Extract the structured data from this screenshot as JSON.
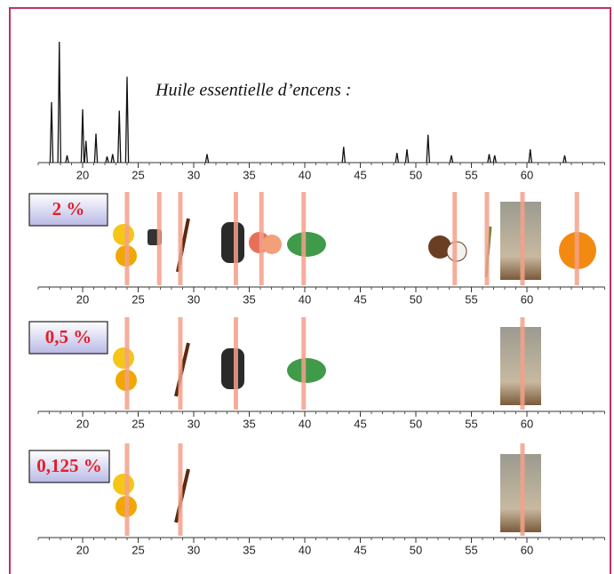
{
  "chart_data": [
    {
      "type": "spike",
      "title": "Huile essentielle d’encens :",
      "x": [
        17.2,
        17.9,
        18.6,
        20.0,
        20.3,
        21.2,
        22.2,
        22.7,
        23.3,
        24.0,
        31.2,
        43.5,
        48.3,
        49.2,
        51.1,
        53.2,
        56.6,
        57.1,
        60.3,
        63.4
      ],
      "values": [
        50,
        100,
        6,
        44,
        18,
        24,
        5,
        7,
        43,
        71,
        7,
        13,
        8,
        11,
        23,
        6,
        7,
        6,
        11,
        6
      ],
      "color": "#111111",
      "xlim": [
        16,
        67
      ],
      "ylim": [
        0,
        100
      ],
      "xticks": [
        20,
        25,
        30,
        35,
        40,
        45,
        50,
        55,
        60
      ]
    },
    {
      "type": "marker",
      "label": "2 %",
      "x": [
        24.0,
        26.9,
        28.8,
        33.8,
        36.1,
        39.9,
        53.5,
        56.4,
        59.6,
        64.5
      ],
      "color": "#f4a08a",
      "xlim": [
        16,
        67
      ],
      "xticks": [
        20,
        25,
        30,
        35,
        40,
        45,
        50,
        55,
        60
      ]
    },
    {
      "type": "marker",
      "label": "0,5 %",
      "x": [
        24.0,
        28.8,
        33.8,
        39.9,
        59.6
      ],
      "color": "#f4a08a",
      "xlim": [
        16,
        67
      ],
      "xticks": [
        20,
        25,
        30,
        35,
        40,
        45,
        50,
        55,
        60
      ]
    },
    {
      "type": "marker",
      "label": "0,125 %",
      "x": [
        24.0,
        28.8,
        59.6
      ],
      "color": "#f4a08a",
      "xlim": [
        16,
        67
      ],
      "xticks": [
        20,
        25,
        30,
        35,
        40,
        45,
        50,
        55,
        60
      ]
    }
  ]
}
